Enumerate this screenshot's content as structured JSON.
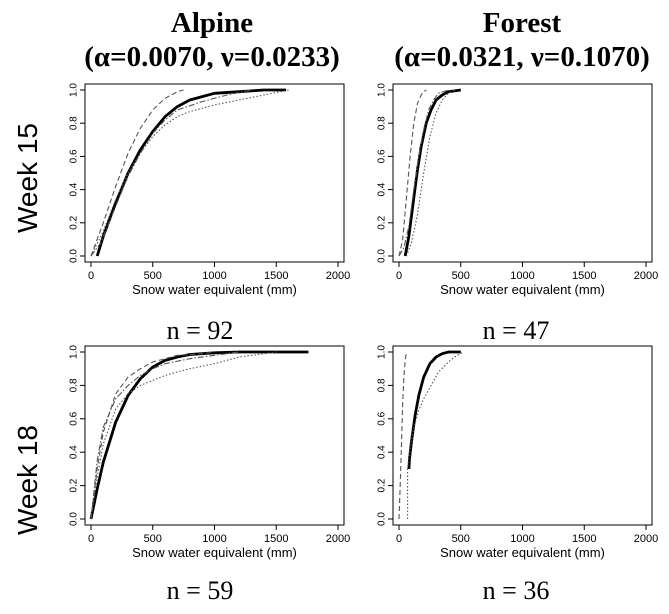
{
  "columns": [
    {
      "title": "Alpine",
      "params": "(α=0.0070, ν=0.0233)"
    },
    {
      "title": "Forest",
      "params": "(α=0.0321, ν=0.1070)"
    }
  ],
  "rows": [
    {
      "label": "Week 15"
    },
    {
      "label": "Week 18"
    }
  ],
  "colors": {
    "fitted": "#000000",
    "empirical": "#555555",
    "axes": "#000000"
  },
  "chart_data": [
    {
      "type": "line",
      "panel": "alpine-week15",
      "xlabel": "Snow water equivalent (mm)",
      "xlim": [
        0,
        2000
      ],
      "ylim": [
        0,
        1
      ],
      "xticks": [
        0,
        500,
        1000,
        1500,
        2000
      ],
      "yticks": [
        0.0,
        0.2,
        0.4,
        0.6,
        0.8,
        1.0
      ],
      "caption": "n = 92",
      "series": [
        {
          "style": "thick",
          "x": [
            50,
            100,
            200,
            300,
            400,
            500,
            600,
            700,
            800,
            900,
            1000,
            1200,
            1400,
            1580
          ],
          "y": [
            0.0,
            0.12,
            0.32,
            0.5,
            0.64,
            0.75,
            0.84,
            0.9,
            0.94,
            0.96,
            0.98,
            0.99,
            1.0,
            1.0
          ]
        },
        {
          "style": "dashed",
          "x": [
            0,
            100,
            200,
            300,
            400,
            500,
            600,
            700,
            750
          ],
          "y": [
            0.0,
            0.2,
            0.42,
            0.62,
            0.77,
            0.88,
            0.95,
            0.99,
            1.0
          ]
        },
        {
          "style": "dotted",
          "x": [
            0,
            100,
            200,
            300,
            400,
            500,
            600,
            700,
            800,
            1000,
            1200,
            1400,
            1600
          ],
          "y": [
            0.0,
            0.15,
            0.34,
            0.5,
            0.62,
            0.72,
            0.79,
            0.84,
            0.87,
            0.91,
            0.94,
            0.97,
            1.0
          ]
        },
        {
          "style": "dashdot",
          "x": [
            0,
            80,
            200,
            300,
            400,
            500,
            600,
            700,
            900,
            1100,
            1300
          ],
          "y": [
            0.0,
            0.08,
            0.3,
            0.48,
            0.62,
            0.74,
            0.82,
            0.88,
            0.93,
            0.97,
            1.0
          ]
        }
      ]
    },
    {
      "type": "line",
      "panel": "forest-week15",
      "xlabel": "Snow water equivalent (mm)",
      "xlim": [
        0,
        2000
      ],
      "ylim": [
        0,
        1
      ],
      "xticks": [
        0,
        500,
        1000,
        1500,
        2000
      ],
      "yticks": [
        0.0,
        0.2,
        0.4,
        0.6,
        0.8,
        1.0
      ],
      "caption": "n = 47",
      "series": [
        {
          "style": "thick",
          "x": [
            50,
            80,
            120,
            150,
            180,
            220,
            260,
            300,
            350,
            400,
            500
          ],
          "y": [
            0.0,
            0.12,
            0.35,
            0.52,
            0.66,
            0.8,
            0.88,
            0.94,
            0.97,
            0.99,
            1.0
          ]
        },
        {
          "style": "dashed",
          "x": [
            0,
            30,
            60,
            90,
            120,
            150,
            180,
            200,
            220
          ],
          "y": [
            0.0,
            0.1,
            0.35,
            0.6,
            0.8,
            0.92,
            0.97,
            0.99,
            1.0
          ]
        },
        {
          "style": "dotted",
          "x": [
            60,
            100,
            150,
            200,
            250,
            300,
            350,
            400,
            450
          ],
          "y": [
            0.0,
            0.08,
            0.25,
            0.5,
            0.72,
            0.86,
            0.94,
            0.98,
            1.0
          ]
        },
        {
          "style": "dashdot",
          "x": [
            0,
            40,
            80,
            120,
            160,
            200,
            240,
            280,
            320,
            400
          ],
          "y": [
            0.0,
            0.05,
            0.18,
            0.4,
            0.6,
            0.76,
            0.88,
            0.94,
            0.98,
            1.0
          ]
        }
      ]
    },
    {
      "type": "line",
      "panel": "alpine-week18",
      "xlabel": "Snow water equivalent (mm)",
      "xlim": [
        0,
        2000
      ],
      "ylim": [
        0,
        1
      ],
      "xticks": [
        0,
        500,
        1000,
        1500,
        2000
      ],
      "yticks": [
        0.0,
        0.2,
        0.4,
        0.6,
        0.8,
        1.0
      ],
      "caption": "n = 59",
      "series": [
        {
          "style": "thick",
          "x": [
            0,
            50,
            100,
            200,
            300,
            400,
            500,
            600,
            700,
            800,
            1000,
            1200,
            1500,
            1760
          ],
          "y": [
            0.0,
            0.18,
            0.34,
            0.58,
            0.74,
            0.84,
            0.91,
            0.95,
            0.97,
            0.985,
            0.995,
            1.0,
            1.0,
            1.0
          ]
        },
        {
          "style": "dashed",
          "x": [
            0,
            50,
            100,
            200,
            300,
            400,
            500,
            600,
            700,
            900,
            1000
          ],
          "y": [
            0.0,
            0.3,
            0.52,
            0.75,
            0.85,
            0.9,
            0.94,
            0.96,
            0.98,
            0.99,
            1.0
          ]
        },
        {
          "style": "dotted",
          "x": [
            0,
            50,
            100,
            200,
            300,
            400,
            500,
            600,
            700,
            800,
            1000,
            1200,
            1500
          ],
          "y": [
            0.0,
            0.25,
            0.45,
            0.66,
            0.75,
            0.8,
            0.83,
            0.86,
            0.88,
            0.9,
            0.93,
            0.97,
            1.0
          ]
        },
        {
          "style": "dashdot",
          "x": [
            0,
            50,
            100,
            200,
            300,
            400,
            500,
            600,
            800,
            1000,
            1200
          ],
          "y": [
            0.0,
            0.35,
            0.55,
            0.72,
            0.8,
            0.86,
            0.9,
            0.93,
            0.96,
            0.98,
            1.0
          ]
        }
      ]
    },
    {
      "type": "line",
      "panel": "forest-week18",
      "xlabel": "Snow water equivalent (mm)",
      "xlim": [
        0,
        2000
      ],
      "ylim": [
        0,
        1
      ],
      "xticks": [
        0,
        500,
        1000,
        1500,
        2000
      ],
      "yticks": [
        0.0,
        0.2,
        0.4,
        0.6,
        0.8,
        1.0
      ],
      "caption": "n = 36",
      "series": [
        {
          "style": "thick",
          "x": [
            80,
            85,
            100,
            130,
            160,
            200,
            250,
            300,
            350,
            400,
            500
          ],
          "y": [
            0.3,
            0.36,
            0.46,
            0.62,
            0.74,
            0.85,
            0.93,
            0.97,
            0.99,
            1.0,
            1.0
          ]
        },
        {
          "style": "dashed",
          "x": [
            0,
            10,
            20,
            30,
            40,
            50,
            60
          ],
          "y": [
            0.0,
            0.2,
            0.45,
            0.7,
            0.85,
            0.95,
            1.0
          ]
        },
        {
          "style": "dotted",
          "x": [
            70,
            70,
            90,
            120,
            160,
            200,
            260,
            320,
            400,
            450,
            520
          ],
          "y": [
            0.0,
            0.3,
            0.42,
            0.55,
            0.65,
            0.72,
            0.8,
            0.88,
            0.94,
            0.97,
            1.0
          ]
        }
      ]
    }
  ]
}
